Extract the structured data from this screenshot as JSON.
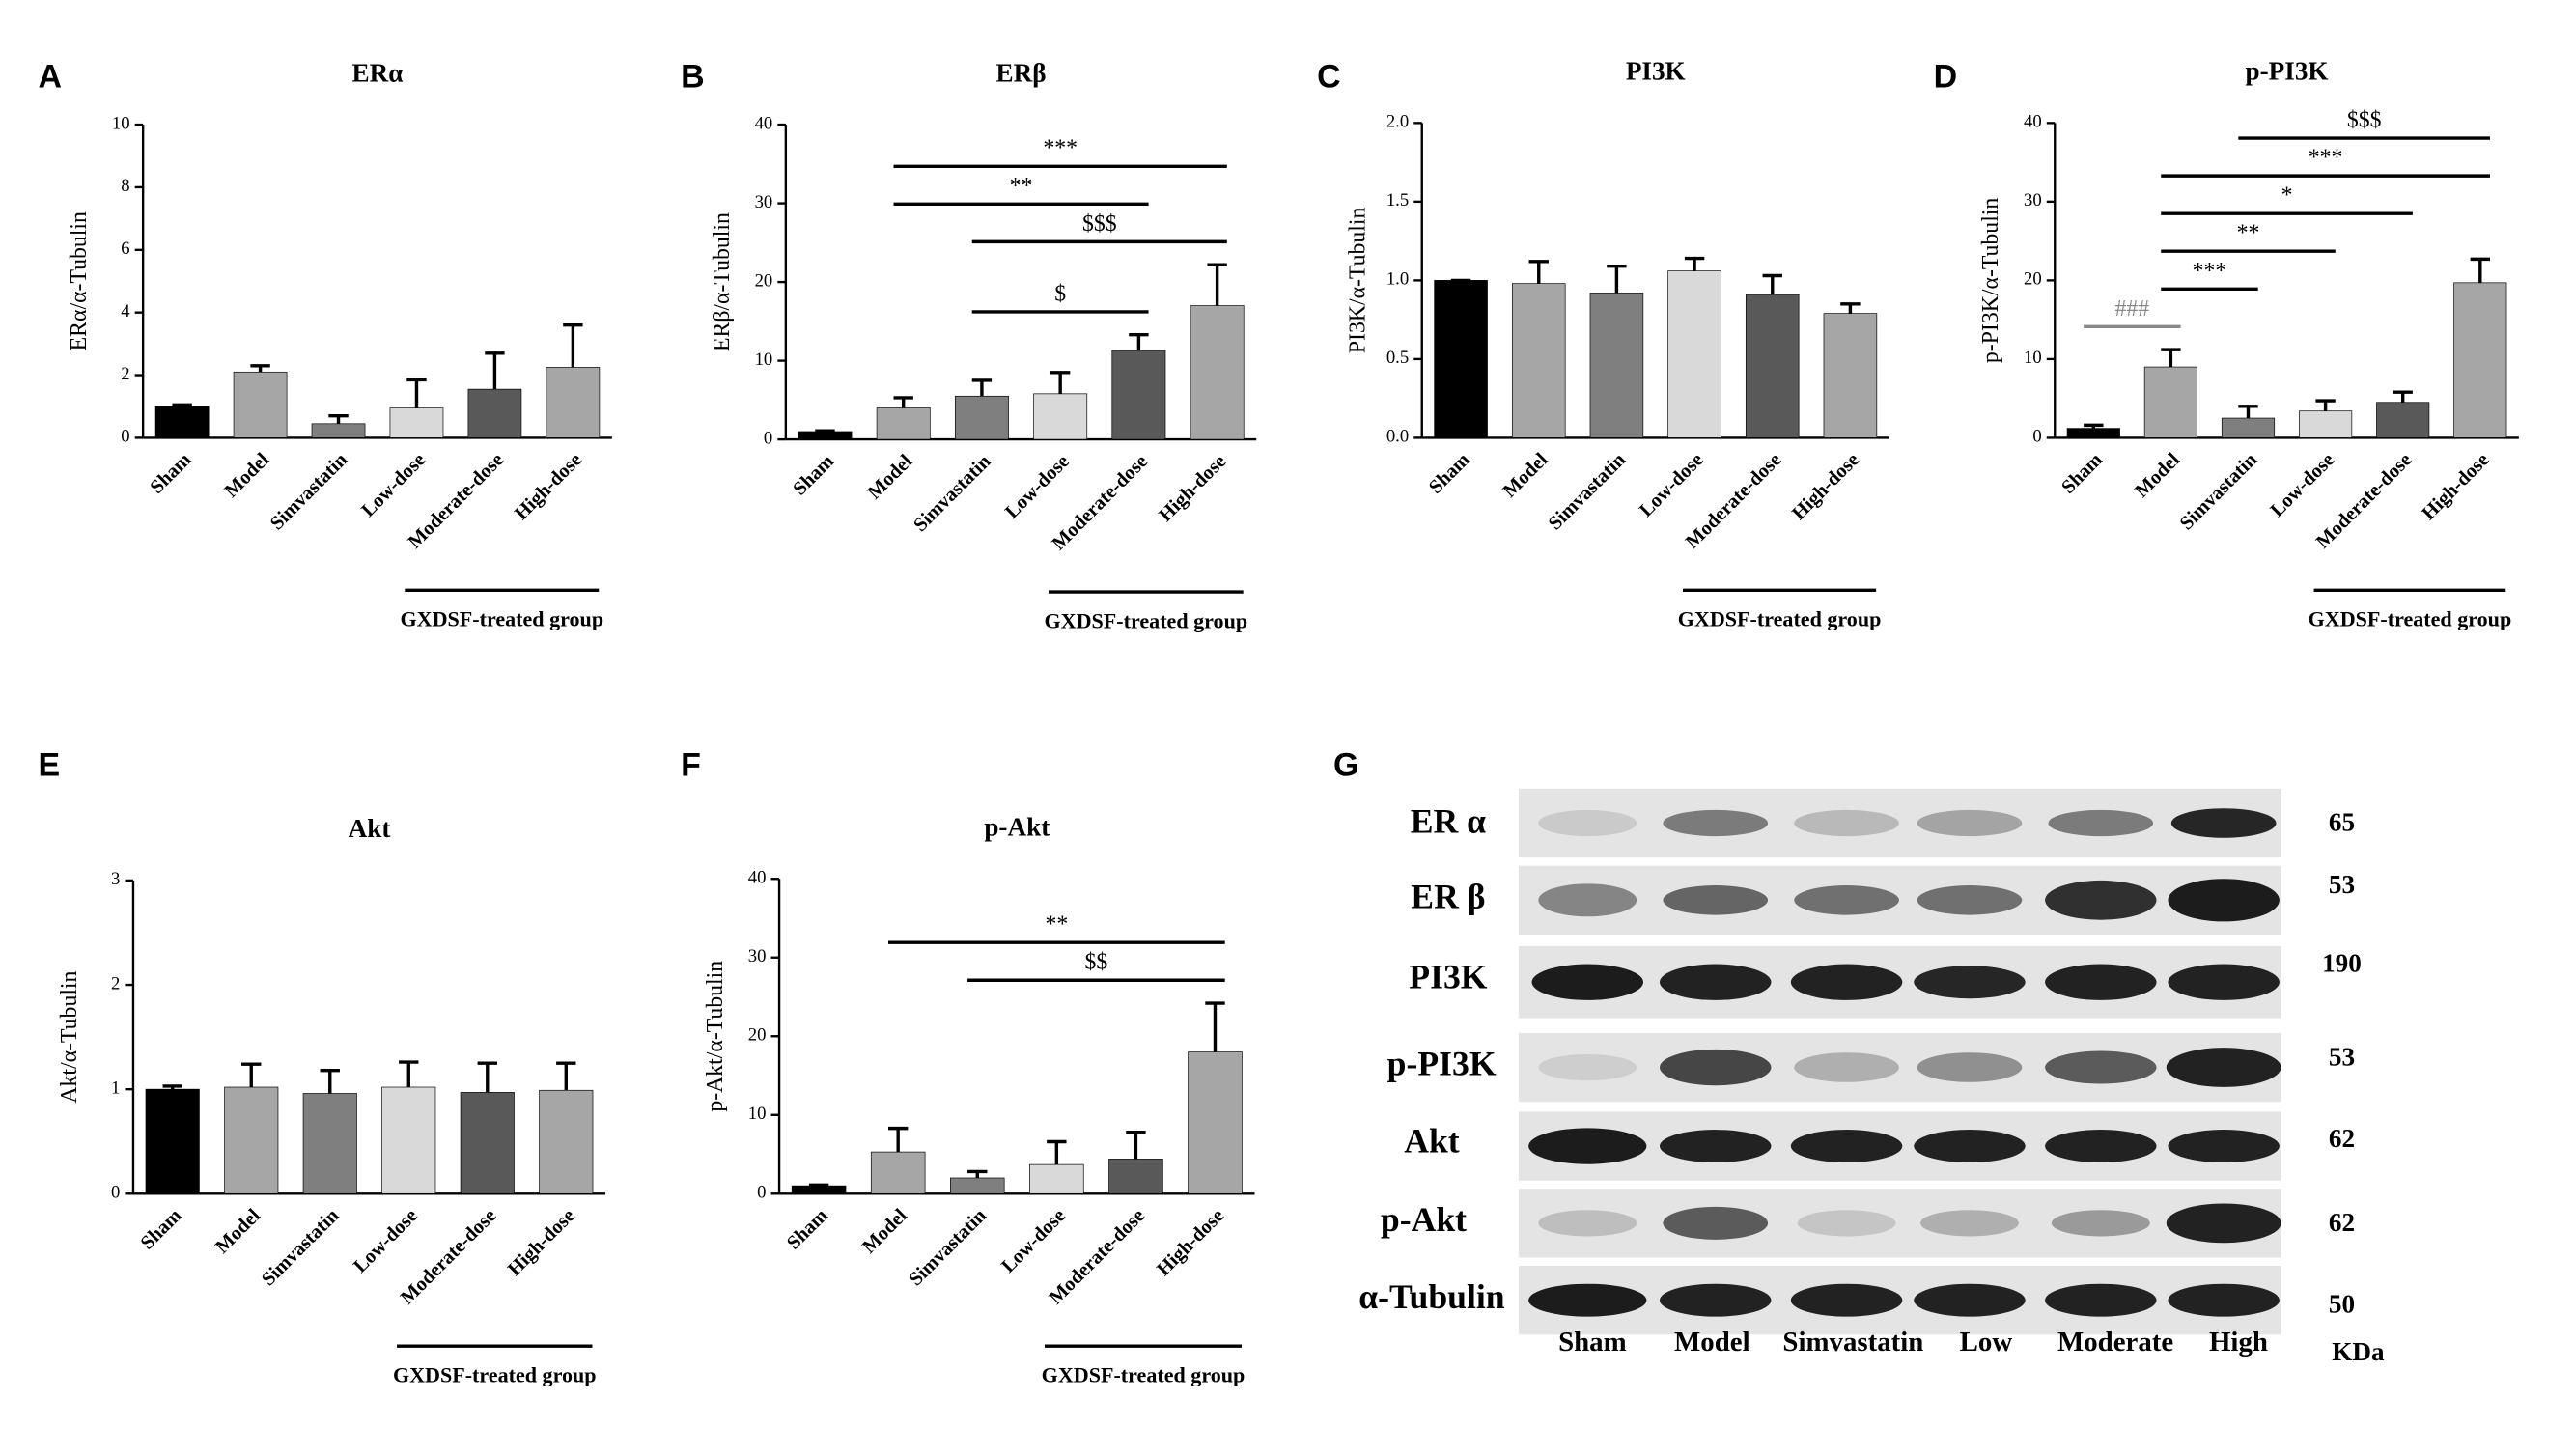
{
  "chart_data": [
    {
      "type": "bar",
      "panel": "A",
      "title": "ERα",
      "y_label": "ERα/α-Tubulin",
      "categories": [
        "Sham",
        "Model",
        "Simvastatin",
        "Low-dose",
        "Moderate-dose",
        "High-dose"
      ],
      "values": [
        1.0,
        2.1,
        0.45,
        0.95,
        1.55,
        2.25
      ],
      "errors": [
        0.05,
        0.2,
        0.25,
        0.9,
        1.15,
        1.35
      ],
      "colors": [
        "#000000",
        "#a6a6a6",
        "#7f7f7f",
        "#d9d9d9",
        "#595959",
        "#a6a6a6"
      ],
      "ylim": [
        0,
        10
      ],
      "yticks": [
        0,
        2,
        4,
        6,
        8,
        10
      ],
      "group_label": "GXDSF-treated group",
      "group_members": [
        "Low-dose",
        "Moderate-dose",
        "High-dose"
      ],
      "annotations": []
    },
    {
      "type": "bar",
      "panel": "B",
      "title": "ERβ",
      "y_label": "ERβ/α-Tubulin",
      "categories": [
        "Sham",
        "Model",
        "Simvastatin",
        "Low-dose",
        "Moderate-dose",
        "High-dose"
      ],
      "values": [
        1.0,
        4.0,
        5.5,
        5.8,
        11.3,
        17.0
      ],
      "errors": [
        0.1,
        1.3,
        2.0,
        2.7,
        2.0,
        5.2
      ],
      "colors": [
        "#000000",
        "#a6a6a6",
        "#7f7f7f",
        "#d9d9d9",
        "#595959",
        "#a6a6a6"
      ],
      "ylim": [
        0,
        40
      ],
      "yticks": [
        0,
        10,
        20,
        30,
        40
      ],
      "group_label": "GXDSF-treated group",
      "group_members": [
        "Low-dose",
        "Moderate-dose",
        "High-dose"
      ],
      "annotations": [
        {
          "text": "$",
          "between": [
            "Simvastatin",
            "Moderate-dose"
          ],
          "color": "#000000"
        },
        {
          "text": "$$$",
          "between": [
            "Simvastatin",
            "High-dose"
          ],
          "color": "#000000"
        },
        {
          "text": "**",
          "between": [
            "Model",
            "Moderate-dose"
          ],
          "color": "#000000"
        },
        {
          "text": "***",
          "between": [
            "Model",
            "High-dose"
          ],
          "color": "#000000"
        }
      ]
    },
    {
      "type": "bar",
      "panel": "C",
      "title": "PI3K",
      "y_label": "PI3K/α-Tubulin",
      "categories": [
        "Sham",
        "Model",
        "Simvastatin",
        "Low-dose",
        "Moderate-dose",
        "High-dose"
      ],
      "values": [
        1.0,
        0.98,
        0.92,
        1.06,
        0.91,
        0.79
      ],
      "errors": [
        0.0,
        0.14,
        0.17,
        0.08,
        0.12,
        0.06
      ],
      "colors": [
        "#000000",
        "#a6a6a6",
        "#7f7f7f",
        "#d9d9d9",
        "#595959",
        "#a6a6a6"
      ],
      "ylim": [
        0,
        2
      ],
      "yticks": [
        {
          "value": 0,
          "label": "0.0"
        },
        {
          "value": 0.5,
          "label": "0.5"
        },
        {
          "value": 1,
          "label": "1.0"
        },
        {
          "value": 1.5,
          "label": "1.5"
        },
        {
          "value": 2,
          "label": "2.0"
        }
      ],
      "group_label": "GXDSF-treated group",
      "group_members": [
        "Low-dose",
        "Moderate-dose",
        "High-dose"
      ],
      "annotations": []
    },
    {
      "type": "bar",
      "panel": "D",
      "title": "p-PI3K",
      "y_label": "p-PI3K/α-Tubulin",
      "categories": [
        "Sham",
        "Model",
        "Simvastatin",
        "Low-dose",
        "Moderate-dose",
        "High-dose"
      ],
      "values": [
        1.2,
        9.0,
        2.5,
        3.4,
        4.5,
        19.7
      ],
      "errors": [
        0.4,
        2.2,
        1.5,
        1.3,
        1.3,
        3.0
      ],
      "colors": [
        "#000000",
        "#a6a6a6",
        "#7f7f7f",
        "#d9d9d9",
        "#595959",
        "#a6a6a6"
      ],
      "ylim": [
        0,
        40
      ],
      "yticks": [
        0,
        10,
        20,
        30,
        40
      ],
      "group_label": "GXDSF-treated group",
      "group_members": [
        "Low-dose",
        "Moderate-dose",
        "High-dose"
      ],
      "annotations": [
        {
          "text": "###",
          "between": [
            "Sham",
            "Model"
          ],
          "color": "#888888"
        },
        {
          "text": "***",
          "between": [
            "Model",
            "Simvastatin"
          ],
          "color": "#000000"
        },
        {
          "text": "**",
          "between": [
            "Model",
            "Low-dose"
          ],
          "color": "#000000"
        },
        {
          "text": "*",
          "between": [
            "Model",
            "Moderate-dose"
          ],
          "color": "#000000"
        },
        {
          "text": "***",
          "between": [
            "Model",
            "High-dose"
          ],
          "color": "#000000"
        },
        {
          "text": "$$$",
          "between": [
            "Simvastatin",
            "High-dose"
          ],
          "color": "#000000"
        }
      ]
    },
    {
      "type": "bar",
      "panel": "E",
      "title": "Akt",
      "y_label": "Akt/α-Tubulin",
      "categories": [
        "Sham",
        "Model",
        "Simvastatin",
        "Low-dose",
        "Moderate-dose",
        "High-dose"
      ],
      "values": [
        1.0,
        1.02,
        0.96,
        1.02,
        0.97,
        0.99
      ],
      "errors": [
        0.03,
        0.22,
        0.22,
        0.24,
        0.28,
        0.26
      ],
      "colors": [
        "#000000",
        "#a6a6a6",
        "#7f7f7f",
        "#d9d9d9",
        "#595959",
        "#a6a6a6"
      ],
      "ylim": [
        0,
        3
      ],
      "yticks": [
        0,
        1,
        2,
        3
      ],
      "group_label": "GXDSF-treated group",
      "group_members": [
        "Low-dose",
        "Moderate-dose",
        "High-dose"
      ],
      "annotations": []
    },
    {
      "type": "bar",
      "panel": "F",
      "title": "p-Akt",
      "y_label": "p-Akt/α-Tubulin",
      "categories": [
        "Sham",
        "Model",
        "Simvastatin",
        "Low-dose",
        "Moderate-dose",
        "High-dose"
      ],
      "values": [
        1.0,
        5.3,
        2.0,
        3.7,
        4.4,
        18.0
      ],
      "errors": [
        0.1,
        3.0,
        0.8,
        2.9,
        3.4,
        6.2
      ],
      "colors": [
        "#000000",
        "#a6a6a6",
        "#7f7f7f",
        "#d9d9d9",
        "#595959",
        "#a6a6a6"
      ],
      "ylim": [
        0,
        40
      ],
      "yticks": [
        0,
        10,
        20,
        30,
        40
      ],
      "group_label": "GXDSF-treated group",
      "group_members": [
        "Low-dose",
        "Moderate-dose",
        "High-dose"
      ],
      "annotations": [
        {
          "text": "$$",
          "between": [
            "Simvastatin",
            "High-dose"
          ],
          "color": "#000000"
        },
        {
          "text": "**",
          "between": [
            "Model",
            "High-dose"
          ],
          "color": "#000000"
        }
      ]
    }
  ],
  "blot": {
    "panel": "G",
    "rows": [
      {
        "label": "ER α",
        "kda": 65
      },
      {
        "label": "ER β",
        "kda": 53
      },
      {
        "label": "PI3K",
        "kda": 190
      },
      {
        "label": "p-PI3K",
        "kda": 53
      },
      {
        "label": "Akt",
        "kda": 62
      },
      {
        "label": "p-Akt",
        "kda": 62
      },
      {
        "label": "α-Tubulin",
        "kda": 50
      }
    ],
    "lanes": [
      "Sham",
      "Model",
      "Simvastatin",
      "Low",
      "Moderate",
      "High"
    ],
    "unit": "KDa"
  }
}
